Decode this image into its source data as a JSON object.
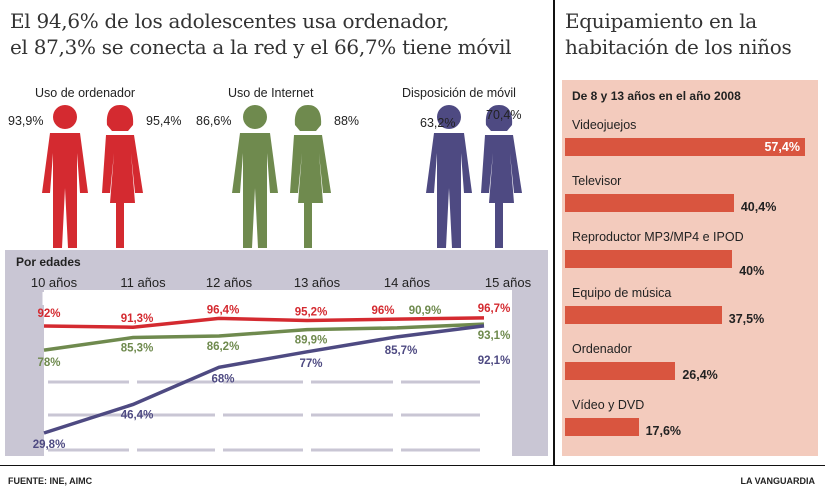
{
  "left_title": [
    "El 94,6% de los adolescentes usa ordenador,",
    "el 87,3% se conecta a la red y el 66,7% tiene móvil"
  ],
  "right_title": [
    "Equipamiento en la",
    "habitación de los niños"
  ],
  "figures": [
    {
      "label": "Uso de ordenador",
      "boy": "93,9%",
      "girl": "95,4%",
      "color": "#d42a30"
    },
    {
      "label": "Uso de Internet",
      "boy": "86,6%",
      "girl": "88%",
      "color": "#6f8a4e"
    },
    {
      "label": "Disposición de móvil",
      "boy": "63,2%",
      "girl": "70,4%",
      "color": "#4e4a82"
    }
  ],
  "footer": {
    "source": "FUENTE: INE, AIMC",
    "brand": "LA VANGUARDIA"
  },
  "chart_data": [
    {
      "type": "line",
      "title": "Por edades",
      "categories": [
        "10 años",
        "11 años",
        "12 años",
        "13 años",
        "14 años",
        "15 años"
      ],
      "series": [
        {
          "name": "Uso de ordenador",
          "color": "#d42a30",
          "values": [
            92,
            91.3,
            96.4,
            95.2,
            96,
            96.7
          ],
          "labels": [
            "92%",
            "91,3%",
            "96,4%",
            "95,2%",
            "96%",
            "96,7%"
          ]
        },
        {
          "name": "Uso de Internet",
          "color": "#6f8a4e",
          "values": [
            78,
            85.3,
            86.2,
            89.9,
            90.9,
            93.1
          ],
          "labels": [
            "78%",
            "85,3%",
            "86,2%",
            "89,9%",
            "90,9%",
            "93,1%"
          ]
        },
        {
          "name": "Disposición de móvil",
          "color": "#4e4a82",
          "values": [
            29.8,
            46.4,
            68,
            77,
            85.7,
            92.1
          ],
          "labels": [
            "29,8%",
            "46,4%",
            "68%",
            "77%",
            "85,7%",
            "92,1%"
          ]
        }
      ]
    },
    {
      "type": "bar",
      "title": "De 8 y 13 años en el año 2008",
      "categories": [
        "Videojuejos",
        "Televisor",
        "Reproductor MP3/MP4 e IPOD",
        "Equipo de música",
        "Ordenador",
        "Vídeo y DVD"
      ],
      "values": [
        57.4,
        40.4,
        40,
        37.5,
        26.4,
        17.6
      ],
      "labels": [
        "57,4%",
        "40,4%",
        "40%",
        "37,5%",
        "26,4%",
        "17,6%"
      ],
      "color": "#d9553f"
    }
  ]
}
